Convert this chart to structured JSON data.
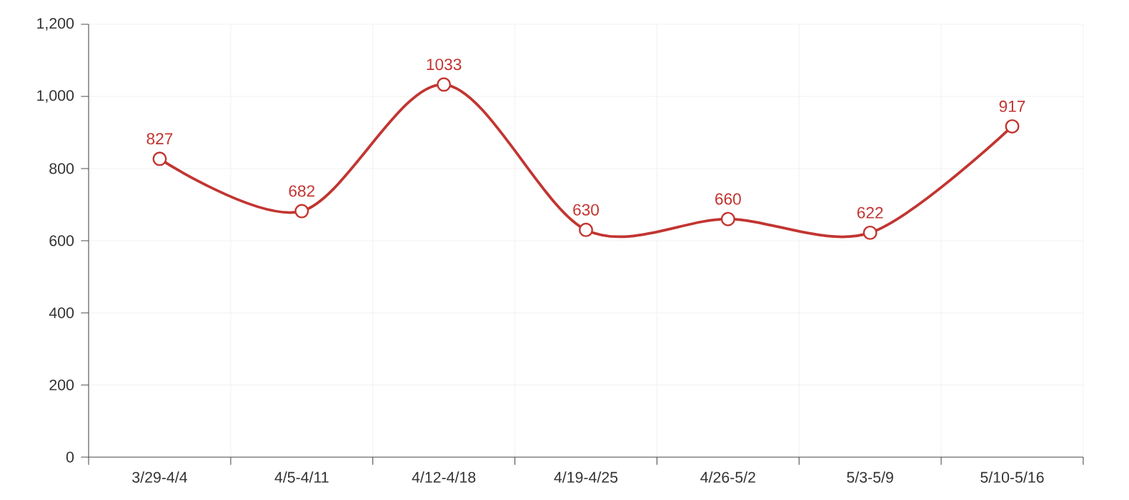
{
  "chart_data": {
    "type": "line",
    "categories": [
      "3/29-4/4",
      "4/5-4/11",
      "4/12-4/18",
      "4/19-4/25",
      "4/26-5/2",
      "5/3-5/9",
      "5/10-5/16"
    ],
    "values": [
      827,
      682,
      1033,
      630,
      660,
      622,
      917
    ],
    "color": "#c23531",
    "ylim": [
      0,
      1200
    ],
    "yticks": [
      0,
      200,
      400,
      600,
      800,
      {
        "value": 1000,
        "label": "1,000"
      },
      {
        "value": 1200,
        "label": "1,200"
      }
    ],
    "grid": true,
    "marker": "circle",
    "line_style": "solid",
    "data_labels": true
  }
}
